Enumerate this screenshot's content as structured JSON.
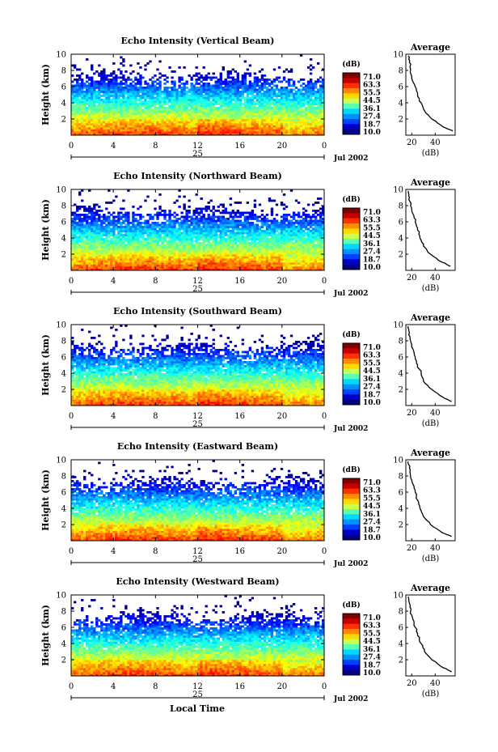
{
  "figure": {
    "xlabel_bottom": "Local Time"
  },
  "colorbar": {
    "title": "(dB)",
    "ticks": [
      "71.0",
      "63.3",
      "55.5",
      "44.5",
      "36.1",
      "27.4",
      "18.7",
      "10.0"
    ],
    "colors": [
      "#7f0000",
      "#c80000",
      "#ff3000",
      "#ff8c00",
      "#ffd800",
      "#c8ff50",
      "#5affb0",
      "#00d8ff",
      "#0090ff",
      "#0040ff",
      "#0000c8",
      "#000080"
    ]
  },
  "average": {
    "title": "Average",
    "xlabel": "(dB)",
    "xticks": [
      "20",
      "40"
    ]
  },
  "chart_data": [
    {
      "type": "heatmap",
      "title": "Echo Intensity (Vertical Beam)",
      "ylabel": "Height (km)",
      "yticks": [
        "10",
        "8",
        "6",
        "4",
        "2"
      ],
      "xticks": [
        "0",
        "4",
        "8",
        "12",
        "16",
        "20",
        "0"
      ],
      "date_day": "25",
      "date_label": "Jul 2002",
      "xlim": [
        0,
        24
      ],
      "ylim": [
        0,
        10
      ],
      "clim": [
        10.0,
        71.0
      ],
      "profile": {
        "type": "line",
        "height_km": [
          0.5,
          1,
          2,
          3,
          4,
          5,
          6,
          7,
          8,
          9,
          9.8
        ],
        "db": [
          55,
          47,
          37,
          31,
          28,
          25,
          23,
          20,
          19,
          18,
          17
        ],
        "xlim": [
          15,
          57
        ],
        "ylim": [
          0,
          10
        ]
      }
    },
    {
      "type": "heatmap",
      "title": "Echo Intensity (Northward Beam)",
      "ylabel": "Height (km)",
      "yticks": [
        "10",
        "8",
        "6",
        "4",
        "2"
      ],
      "xticks": [
        "0",
        "4",
        "8",
        "12",
        "16",
        "20",
        "0"
      ],
      "date_day": "25",
      "date_label": "Jul 2002",
      "xlim": [
        0,
        24
      ],
      "ylim": [
        0,
        10
      ],
      "clim": [
        10.0,
        71.0
      ],
      "profile": {
        "type": "line",
        "height_km": [
          0.5,
          1,
          2,
          3,
          4,
          5,
          6,
          7,
          8,
          9,
          9.8
        ],
        "db": [
          53,
          46,
          36,
          30,
          27,
          25,
          23,
          21,
          19,
          18,
          17
        ],
        "xlim": [
          15,
          57
        ],
        "ylim": [
          0,
          10
        ]
      }
    },
    {
      "type": "heatmap",
      "title": "Echo Intensity (Southward Beam)",
      "ylabel": "Height (km)",
      "yticks": [
        "10",
        "8",
        "6",
        "4",
        "2"
      ],
      "xticks": [
        "0",
        "4",
        "8",
        "12",
        "16",
        "20",
        "0"
      ],
      "date_day": "25",
      "date_label": "Jul 2002",
      "xlim": [
        0,
        24
      ],
      "ylim": [
        0,
        10
      ],
      "clim": [
        10.0,
        71.0
      ],
      "profile": {
        "type": "line",
        "height_km": [
          0.5,
          1,
          2,
          3,
          4,
          5,
          6,
          7,
          8,
          9,
          9.8
        ],
        "db": [
          54,
          47,
          37,
          30,
          28,
          25,
          23,
          21,
          19,
          18,
          17
        ],
        "xlim": [
          15,
          57
        ],
        "ylim": [
          0,
          10
        ]
      }
    },
    {
      "type": "heatmap",
      "title": "Echo Intensity (Eastward Beam)",
      "ylabel": "Height (km)",
      "yticks": [
        "10",
        "8",
        "6",
        "4",
        "2"
      ],
      "xticks": [
        "0",
        "4",
        "8",
        "12",
        "16",
        "20",
        "0"
      ],
      "date_day": "25",
      "date_label": "Jul 2002",
      "xlim": [
        0,
        24
      ],
      "ylim": [
        0,
        10
      ],
      "clim": [
        10.0,
        71.0
      ],
      "profile": {
        "type": "line",
        "height_km": [
          0.5,
          1,
          2,
          3,
          4,
          5,
          6,
          7,
          8,
          9,
          9.8
        ],
        "db": [
          54,
          46,
          36,
          30,
          27,
          25,
          23,
          21,
          19,
          18,
          17
        ],
        "xlim": [
          15,
          57
        ],
        "ylim": [
          0,
          10
        ]
      }
    },
    {
      "type": "heatmap",
      "title": "Echo Intensity (Westward Beam)",
      "ylabel": "Height (km)",
      "yticks": [
        "10",
        "8",
        "6",
        "4",
        "2"
      ],
      "xticks": [
        "0",
        "4",
        "8",
        "12",
        "16",
        "20",
        "0"
      ],
      "date_day": "25",
      "date_label": "Jul 2002",
      "xlim": [
        0,
        24
      ],
      "ylim": [
        0,
        10
      ],
      "clim": [
        10.0,
        71.0
      ],
      "profile": {
        "type": "line",
        "height_km": [
          0.5,
          1,
          2,
          3,
          4,
          5,
          6,
          7,
          8,
          9,
          9.8
        ],
        "db": [
          54,
          47,
          37,
          31,
          28,
          25,
          23,
          21,
          19,
          18,
          17
        ],
        "xlim": [
          15,
          57
        ],
        "ylim": [
          0,
          10
        ]
      }
    }
  ]
}
